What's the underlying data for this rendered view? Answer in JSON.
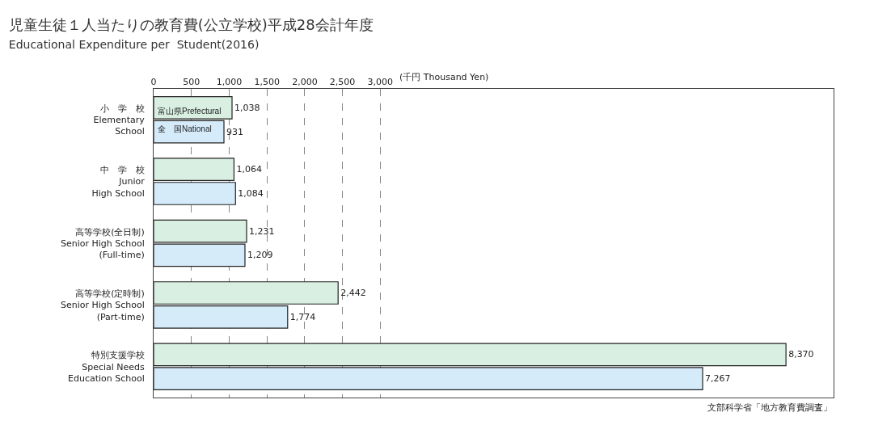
{
  "chart_data": {
    "type": "bar",
    "orientation": "horizontal",
    "title": "児童生徒１人当たりの教育費(公立学校)平成28会計年度",
    "subtitle": "Educational Expenditure per  Student(2016)",
    "xlabel": "(千円 Thousand Yen)",
    "categories": [
      "小　学　校\nElementary\nSchool",
      "中　学　校\nJunior\nHigh School",
      "高等学校(全日制)\nSenior High School\n(Full-time)",
      "高等学校(定時制)\nSenior High School\n(Part-time)",
      "特別支援学校\nSpecial Needs\nEducation School"
    ],
    "series": [
      {
        "name": "富山県Prefectural",
        "color": "#d8efe2",
        "values": [
          1038,
          1064,
          1231,
          2442,
          8370
        ]
      },
      {
        "name": "全　国National",
        "color": "#d5ebfa",
        "values": [
          931,
          1084,
          1209,
          1774,
          7267
        ]
      }
    ],
    "xlim": [
      0,
      9000
    ],
    "xticks": [
      0,
      500,
      {
        "value": 1000,
        "label": "1,000"
      },
      {
        "value": 1500,
        "label": "1,500"
      },
      {
        "value": 2000,
        "label": "2,000"
      },
      {
        "value": 2500,
        "label": "2,500"
      },
      {
        "value": 3000,
        "label": "3,000"
      }
    ],
    "grid": "x",
    "legend": false,
    "value_labels": [
      [
        "1,038",
        "1,064",
        "1,231",
        "2,442",
        "8,370"
      ],
      [
        "931",
        "1,084",
        "1,209",
        "1,774",
        "7,267"
      ]
    ],
    "annotations": [
      "文部科学省「地方教育費調査」"
    ]
  }
}
